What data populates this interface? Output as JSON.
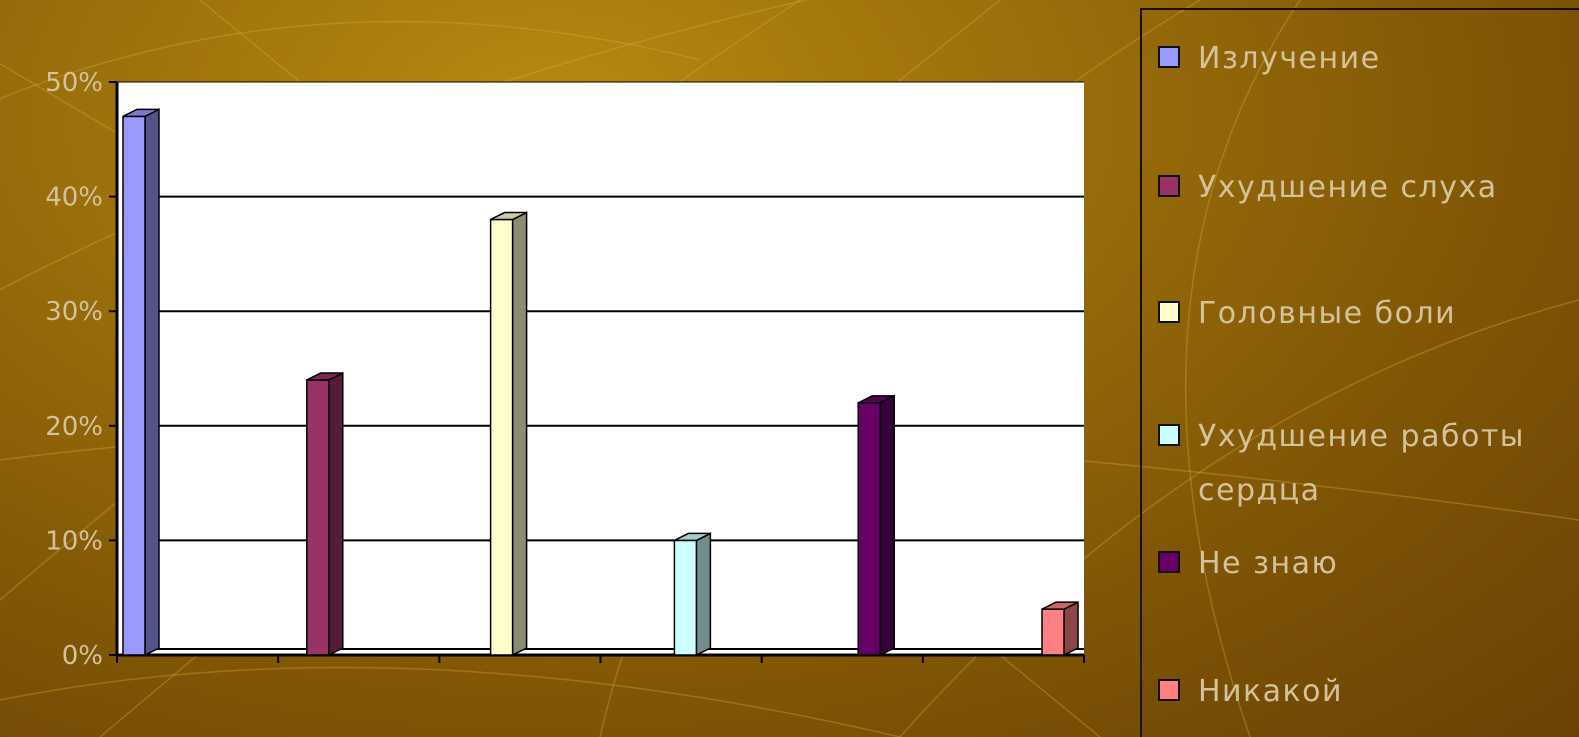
{
  "chart_data": {
    "type": "bar",
    "categories": [
      "Излучение",
      "Ухудшение слуха",
      "Головные боли",
      "Ухудшение работы сердца",
      "Не знаю",
      "Никакой"
    ],
    "values": [
      47,
      24,
      38,
      10,
      22,
      4
    ],
    "colors": [
      "#9999ff",
      "#993366",
      "#ffffcc",
      "#ccffff",
      "#660066",
      "#ff8080"
    ],
    "y_ticks": [
      "0%",
      "10%",
      "20%",
      "30%",
      "40%",
      "50%"
    ],
    "ylim": [
      0,
      50
    ],
    "grid": true,
    "legend_position": "right",
    "title": "",
    "xlabel": "",
    "ylabel": ""
  }
}
